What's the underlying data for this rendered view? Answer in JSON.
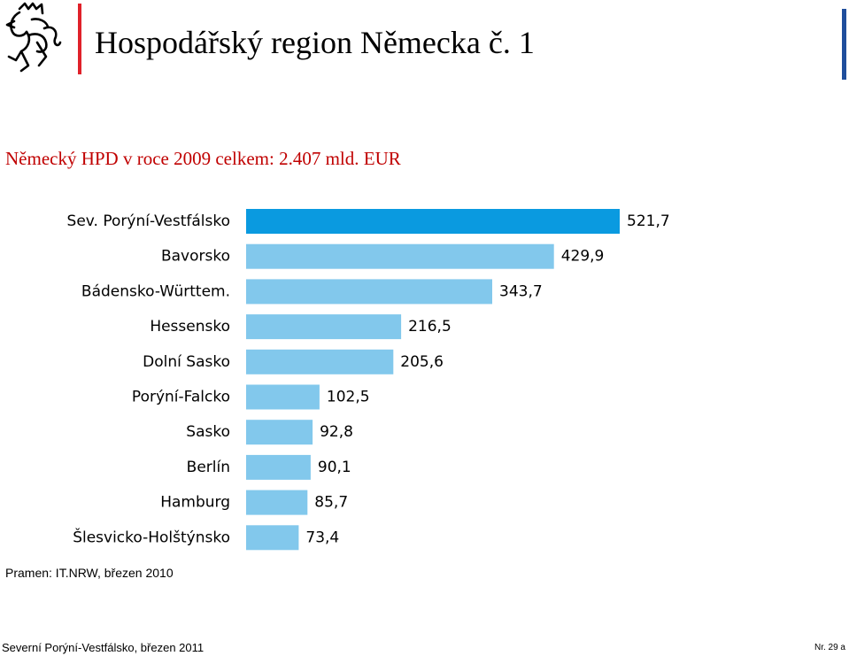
{
  "header": {
    "title": "Hospodářský region Německa č. 1",
    "accent_red": "#e0212a",
    "accent_blue": "#1f4e9c",
    "logo_icon": "lion-icon"
  },
  "subtitle": "Německý HPD v roce 2009 celkem: 2.407 mld. EUR",
  "subtitle_color": "#c00000",
  "chart_data": {
    "type": "bar",
    "orientation": "horizontal",
    "categories": [
      "Sev. Porýní-Vestfálsko",
      "Bavorsko",
      "Bádensko-Württem.",
      "Hessensko",
      "Dolní Sasko",
      "Porýní-Falcko",
      "Sasko",
      "Berlín",
      "Hamburg",
      "Šlesvicko-Holštýnsko"
    ],
    "values": [
      521.7,
      429.9,
      343.7,
      216.5,
      205.6,
      102.5,
      92.8,
      90.1,
      85.7,
      73.4
    ],
    "value_labels": [
      "521,7",
      "429,9",
      "343,7",
      "216,5",
      "205,6",
      "102,5",
      "92,8",
      "90,1",
      "85,7",
      "73,4"
    ],
    "highlight_index": 0,
    "colors": {
      "highlight": "#0a9ae0",
      "default": "#82c8ec"
    },
    "xlim": [
      0,
      521.7
    ],
    "grid": false,
    "legend": "none"
  },
  "source": "Pramen: IT.NRW, březen 2010",
  "footer": {
    "left": "Severní Porýní-Vestfálsko, březen 2011",
    "right": "Nr. 29 a"
  }
}
